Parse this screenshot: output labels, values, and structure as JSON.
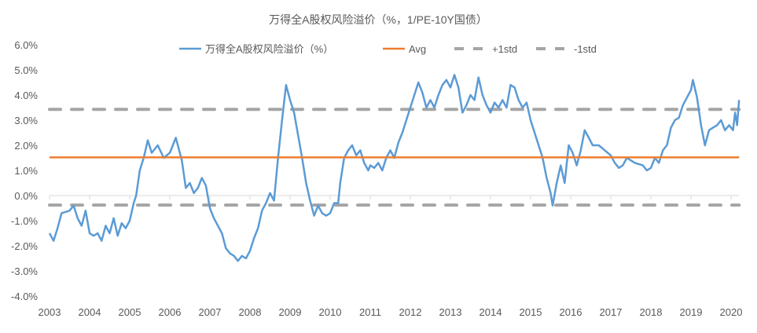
{
  "chart_data": {
    "type": "line",
    "title": "万得全A股权风险溢价（%，1/PE-10Y国债）",
    "xlabel": "",
    "ylabel": "",
    "ylim": [
      -4.0,
      6.0
    ],
    "xlim": [
      2003,
      2020.2
    ],
    "grid": false,
    "legend_position": "top",
    "y_ticks": [
      "6.0%",
      "5.0%",
      "4.0%",
      "3.0%",
      "2.0%",
      "1.0%",
      "0.0%",
      "-1.0%",
      "-2.0%",
      "-3.0%",
      "-4.0%"
    ],
    "y_tick_values": [
      6,
      5,
      4,
      3,
      2,
      1,
      0,
      -1,
      -2,
      -3,
      -4
    ],
    "x_ticks": [
      "2003",
      "2004",
      "2005",
      "2006",
      "2007",
      "2008",
      "2009",
      "2010",
      "2011",
      "2012",
      "2013",
      "2014",
      "2015",
      "2016",
      "2017",
      "2018",
      "2019",
      "2020"
    ],
    "series": [
      {
        "name": "万得全A股权风险溢价（%）",
        "color": "#5B9BD5",
        "style": "solid",
        "x": [
          2003.0,
          2003.1,
          2003.2,
          2003.3,
          2003.5,
          2003.6,
          2003.7,
          2003.8,
          2003.9,
          2004.0,
          2004.1,
          2004.2,
          2004.3,
          2004.4,
          2004.5,
          2004.6,
          2004.7,
          2004.8,
          2004.9,
          2005.0,
          2005.1,
          2005.16,
          2005.25,
          2005.35,
          2005.45,
          2005.55,
          2005.7,
          2005.85,
          2006.0,
          2006.15,
          2006.3,
          2006.4,
          2006.5,
          2006.6,
          2006.7,
          2006.8,
          2006.9,
          2007.0,
          2007.1,
          2007.2,
          2007.3,
          2007.4,
          2007.5,
          2007.6,
          2007.7,
          2007.8,
          2007.9,
          2008.0,
          2008.1,
          2008.2,
          2008.3,
          2008.4,
          2008.5,
          2008.6,
          2008.7,
          2008.8,
          2008.9,
          2009.0,
          2009.1,
          2009.2,
          2009.3,
          2009.4,
          2009.5,
          2009.6,
          2009.7,
          2009.8,
          2009.9,
          2010.0,
          2010.1,
          2010.2,
          2010.25,
          2010.35,
          2010.45,
          2010.55,
          2010.65,
          2010.75,
          2010.85,
          2010.95,
          2011.0,
          2011.1,
          2011.2,
          2011.3,
          2011.4,
          2011.5,
          2011.6,
          2011.7,
          2011.8,
          2011.9,
          2012.0,
          2012.1,
          2012.2,
          2012.3,
          2012.4,
          2012.5,
          2012.6,
          2012.7,
          2012.8,
          2012.9,
          2013.0,
          2013.1,
          2013.2,
          2013.3,
          2013.4,
          2013.5,
          2013.6,
          2013.7,
          2013.8,
          2013.9,
          2014.0,
          2014.1,
          2014.2,
          2014.3,
          2014.4,
          2014.5,
          2014.6,
          2014.7,
          2014.8,
          2014.9,
          2015.0,
          2015.1,
          2015.2,
          2015.3,
          2015.4,
          2015.5,
          2015.55,
          2015.65,
          2015.75,
          2015.85,
          2015.95,
          2016.05,
          2016.15,
          2016.25,
          2016.35,
          2016.45,
          2016.55,
          2016.7,
          2016.85,
          2017.0,
          2017.1,
          2017.2,
          2017.3,
          2017.4,
          2017.5,
          2017.6,
          2017.8,
          2017.9,
          2018.0,
          2018.1,
          2018.2,
          2018.3,
          2018.4,
          2018.5,
          2018.6,
          2018.7,
          2018.8,
          2018.9,
          2019.0,
          2019.05,
          2019.15,
          2019.25,
          2019.35,
          2019.45,
          2019.55,
          2019.65,
          2019.75,
          2019.85,
          2019.95,
          2020.05,
          2020.1,
          2020.15,
          2020.2
        ],
        "values": [
          -1.5,
          -1.8,
          -1.3,
          -0.7,
          -0.6,
          -0.4,
          -0.9,
          -1.2,
          -0.6,
          -1.5,
          -1.6,
          -1.5,
          -1.8,
          -1.2,
          -1.5,
          -0.9,
          -1.6,
          -1.1,
          -1.3,
          -1.0,
          -0.3,
          0.0,
          1.0,
          1.5,
          2.2,
          1.7,
          2.0,
          1.5,
          1.7,
          2.3,
          1.4,
          0.3,
          0.5,
          0.1,
          0.3,
          0.7,
          0.4,
          -0.5,
          -0.9,
          -1.2,
          -1.5,
          -2.1,
          -2.3,
          -2.4,
          -2.6,
          -2.4,
          -2.5,
          -2.2,
          -1.7,
          -1.3,
          -0.6,
          -0.3,
          0.1,
          -0.2,
          1.5,
          3.0,
          4.4,
          3.8,
          3.3,
          2.4,
          1.5,
          0.5,
          -0.2,
          -0.8,
          -0.4,
          -0.7,
          -0.8,
          -0.7,
          -0.3,
          -0.3,
          0.5,
          1.5,
          1.8,
          2.0,
          1.6,
          1.8,
          1.3,
          1.0,
          1.2,
          1.1,
          1.3,
          1.0,
          1.5,
          1.8,
          1.5,
          2.1,
          2.5,
          3.0,
          3.5,
          4.0,
          4.5,
          4.1,
          3.5,
          3.8,
          3.5,
          4.0,
          4.4,
          4.6,
          4.3,
          4.8,
          4.3,
          3.3,
          3.6,
          4.0,
          3.8,
          4.7,
          4.0,
          3.6,
          3.3,
          3.7,
          3.5,
          3.8,
          3.5,
          4.4,
          4.3,
          3.8,
          3.5,
          3.7,
          3.0,
          2.5,
          2.0,
          1.5,
          0.7,
          0.1,
          -0.4,
          0.5,
          1.2,
          0.5,
          2.0,
          1.7,
          1.2,
          1.8,
          2.6,
          2.3,
          2.0,
          2.0,
          1.8,
          1.6,
          1.3,
          1.1,
          1.2,
          1.5,
          1.4,
          1.3,
          1.2,
          1.0,
          1.1,
          1.5,
          1.3,
          1.8,
          2.0,
          2.7,
          3.0,
          3.1,
          3.6,
          3.9,
          4.2,
          4.6,
          3.9,
          2.8,
          2.0,
          2.6,
          2.7,
          2.8,
          3.0,
          2.6,
          2.8,
          2.6,
          3.3,
          2.8,
          3.8
        ]
      },
      {
        "name": "Avg",
        "color": "#ED7D31",
        "style": "solid",
        "value": 1.52
      },
      {
        "name": "+1std",
        "color": "#A5A5A5",
        "style": "dashed",
        "value": 3.43
      },
      {
        "name": "-1std",
        "color": "#A5A5A5",
        "style": "dashed",
        "value": -0.38
      }
    ]
  }
}
